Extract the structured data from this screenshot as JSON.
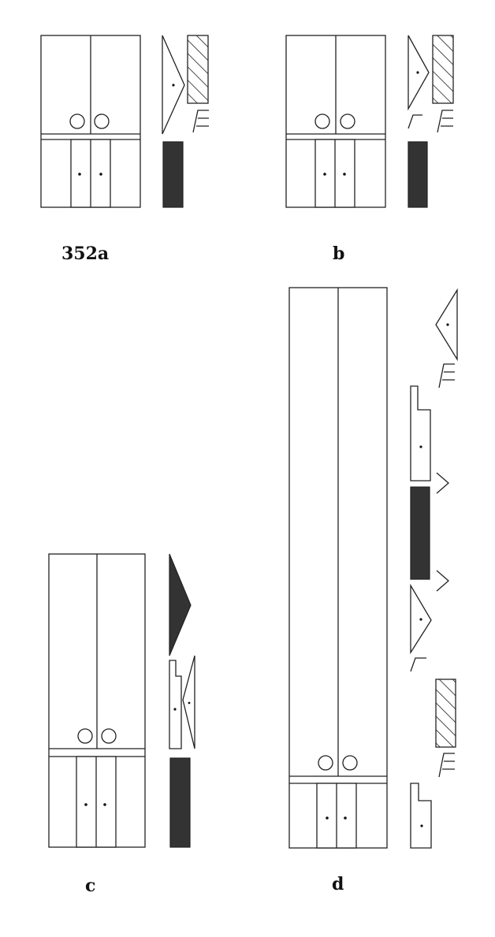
{
  "figures": [
    {
      "id": "a",
      "label": "352a"
    },
    {
      "id": "b",
      "label": "b"
    },
    {
      "id": "c",
      "label": "c"
    },
    {
      "id": "d",
      "label": "d"
    }
  ],
  "colors": {
    "ink": "#222222",
    "fill_dark": "#333333",
    "paper": "#ffffff"
  }
}
